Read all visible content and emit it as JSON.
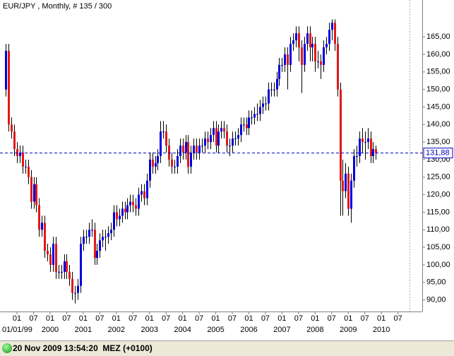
{
  "chart_data": {
    "type": "candlestick",
    "title": "EUR/JPY , Monthly, # 135 / 300",
    "x": [
      "1998-09",
      "1998-10",
      "1998-11",
      "1998-12",
      "1999-01",
      "1999-02",
      "1999-03",
      "1999-04",
      "1999-05",
      "1999-06",
      "1999-07",
      "1999-08",
      "1999-09",
      "1999-10",
      "1999-11",
      "1999-12",
      "2000-01",
      "2000-02",
      "2000-03",
      "2000-04",
      "2000-05",
      "2000-06",
      "2000-07",
      "2000-08",
      "2000-09",
      "2000-10",
      "2000-11",
      "2000-12",
      "2001-01",
      "2001-02",
      "2001-03",
      "2001-04",
      "2001-05",
      "2001-06",
      "2001-07",
      "2001-08",
      "2001-09",
      "2001-10",
      "2001-11",
      "2001-12",
      "2002-01",
      "2002-02",
      "2002-03",
      "2002-04",
      "2002-05",
      "2002-06",
      "2002-07",
      "2002-08",
      "2002-09",
      "2002-10",
      "2002-11",
      "2002-12",
      "2003-01",
      "2003-02",
      "2003-03",
      "2003-04",
      "2003-05",
      "2003-06",
      "2003-07",
      "2003-08",
      "2003-09",
      "2003-10",
      "2003-11",
      "2003-12",
      "2004-01",
      "2004-02",
      "2004-03",
      "2004-04",
      "2004-05",
      "2004-06",
      "2004-07",
      "2004-08",
      "2004-09",
      "2004-10",
      "2004-11",
      "2004-12",
      "2005-01",
      "2005-02",
      "2005-03",
      "2005-04",
      "2005-05",
      "2005-06",
      "2005-07",
      "2005-08",
      "2005-09",
      "2005-10",
      "2005-11",
      "2005-12",
      "2006-01",
      "2006-02",
      "2006-03",
      "2006-04",
      "2006-05",
      "2006-06",
      "2006-07",
      "2006-08",
      "2006-09",
      "2006-10",
      "2006-11",
      "2006-12",
      "2007-01",
      "2007-02",
      "2007-03",
      "2007-04",
      "2007-05",
      "2007-06",
      "2007-07",
      "2007-08",
      "2007-09",
      "2007-10",
      "2007-11",
      "2007-12",
      "2008-01",
      "2008-02",
      "2008-03",
      "2008-04",
      "2008-05",
      "2008-06",
      "2008-07",
      "2008-08",
      "2008-09",
      "2008-10",
      "2008-11",
      "2008-12",
      "2009-01",
      "2009-02",
      "2009-03",
      "2009-04",
      "2009-05",
      "2009-06",
      "2009-07",
      "2009-08",
      "2009-09",
      "2009-10",
      "2009-11"
    ],
    "open": [
      150,
      161,
      140,
      138,
      133,
      131,
      132,
      128,
      128,
      125,
      118,
      123,
      117,
      110,
      112,
      104,
      103,
      100,
      106,
      98,
      98,
      98,
      101,
      98,
      96,
      92,
      92,
      94,
      106,
      108,
      108,
      110,
      110,
      102,
      104,
      107,
      108,
      108,
      109,
      110,
      115,
      113,
      114,
      116,
      115,
      117,
      118,
      117,
      116,
      120,
      121,
      119,
      124,
      130,
      128,
      129,
      131,
      138,
      138,
      134,
      130,
      128,
      128,
      131,
      134,
      132,
      135,
      128,
      132,
      134,
      132,
      134,
      134,
      136,
      135,
      137,
      139,
      134,
      138,
      139,
      138,
      134,
      134,
      136,
      136,
      137,
      140,
      140,
      139,
      142,
      142,
      143,
      143,
      145,
      146,
      146,
      150,
      150,
      150,
      153,
      157,
      157,
      160,
      157,
      163,
      164,
      166,
      162,
      157,
      163,
      166,
      162,
      163,
      158,
      158,
      157,
      162,
      163,
      167,
      169,
      163,
      150,
      124,
      121,
      126,
      116,
      124,
      131,
      131,
      136,
      135,
      135,
      136,
      131,
      133
    ],
    "high": [
      163,
      163,
      142,
      140,
      135,
      134,
      134,
      130,
      130,
      127,
      125,
      125,
      119,
      114,
      114,
      106,
      105,
      108,
      108,
      100,
      100,
      103,
      103,
      100,
      98,
      94,
      96,
      108,
      110,
      110,
      112,
      113,
      112,
      106,
      109,
      110,
      110,
      111,
      112,
      117,
      117,
      116,
      118,
      118,
      119,
      120,
      120,
      119,
      122,
      123,
      123,
      126,
      132,
      132,
      131,
      133,
      141,
      141,
      140,
      136,
      132,
      130,
      133,
      136,
      136,
      137,
      137,
      134,
      136,
      136,
      136,
      136,
      138,
      138,
      139,
      141,
      141,
      140,
      141,
      141,
      140,
      136,
      138,
      138,
      139,
      142,
      142,
      142,
      144,
      144,
      145,
      146,
      147,
      148,
      148,
      152,
      152,
      152,
      155,
      159,
      159,
      162,
      162,
      165,
      166,
      168,
      168,
      164,
      165,
      168,
      168,
      165,
      165,
      161,
      160,
      164,
      165,
      169,
      170,
      170,
      165,
      152,
      130,
      129,
      128,
      126,
      133,
      134,
      138,
      139,
      138,
      139,
      138,
      135,
      134
    ],
    "low": [
      148,
      138,
      136,
      131,
      129,
      129,
      126,
      126,
      123,
      116,
      116,
      115,
      108,
      108,
      102,
      101,
      98,
      98,
      96,
      96,
      96,
      96,
      96,
      94,
      90,
      89,
      90,
      92,
      104,
      106,
      106,
      108,
      100,
      100,
      102,
      105,
      104,
      106,
      107,
      108,
      111,
      111,
      112,
      113,
      113,
      115,
      115,
      114,
      114,
      118,
      117,
      117,
      122,
      126,
      126,
      127,
      129,
      136,
      132,
      128,
      126,
      126,
      126,
      129,
      130,
      130,
      126,
      126,
      130,
      130,
      130,
      132,
      132,
      133,
      133,
      135,
      132,
      132,
      136,
      136,
      132,
      131,
      132,
      134,
      134,
      135,
      138,
      137,
      137,
      140,
      140,
      141,
      141,
      143,
      144,
      144,
      148,
      148,
      148,
      151,
      155,
      155,
      150,
      155,
      161,
      162,
      158,
      149,
      155,
      161,
      158,
      158,
      155,
      156,
      153,
      155,
      160,
      161,
      164,
      161,
      148,
      114,
      114,
      119,
      114,
      112,
      122,
      128,
      129,
      132,
      130,
      133,
      129,
      129,
      130
    ],
    "close": [
      161,
      140,
      138,
      133,
      131,
      132,
      128,
      128,
      125,
      118,
      123,
      117,
      110,
      112,
      104,
      103,
      100,
      106,
      98,
      98,
      98,
      101,
      98,
      96,
      92,
      92,
      94,
      106,
      108,
      108,
      110,
      110,
      102,
      104,
      107,
      108,
      108,
      109,
      110,
      115,
      113,
      114,
      116,
      115,
      117,
      118,
      117,
      116,
      120,
      121,
      119,
      124,
      130,
      128,
      129,
      131,
      138,
      138,
      134,
      130,
      128,
      128,
      131,
      134,
      132,
      135,
      128,
      132,
      134,
      132,
      134,
      134,
      136,
      135,
      137,
      139,
      134,
      138,
      139,
      138,
      134,
      134,
      136,
      136,
      137,
      140,
      140,
      139,
      142,
      142,
      143,
      143,
      145,
      146,
      146,
      150,
      150,
      150,
      153,
      157,
      157,
      160,
      157,
      163,
      164,
      166,
      162,
      157,
      163,
      166,
      162,
      163,
      158,
      158,
      157,
      162,
      163,
      167,
      169,
      163,
      150,
      124,
      121,
      126,
      116,
      124,
      131,
      131,
      136,
      135,
      135,
      136,
      131,
      133,
      131.88
    ],
    "up_color": "#0000e0",
    "down_color": "#e01818",
    "wick_color": "#000000",
    "ylim": [
      86.7,
      175.5
    ],
    "yticks": [
      {
        "value": 90,
        "label": "90,00"
      },
      {
        "value": 95,
        "label": "95,00"
      },
      {
        "value": 100,
        "label": "100,00"
      },
      {
        "value": 105,
        "label": "105,00"
      },
      {
        "value": 110,
        "label": "110,00"
      },
      {
        "value": 115,
        "label": "115,00"
      },
      {
        "value": 120,
        "label": "120,00"
      },
      {
        "value": 125,
        "label": "125,00"
      },
      {
        "value": 130,
        "label": "130,00"
      },
      {
        "value": 135,
        "label": "135,00"
      },
      {
        "value": 140,
        "label": "140,00"
      },
      {
        "value": 145,
        "label": "145,00"
      },
      {
        "value": 150,
        "label": "150,00"
      },
      {
        "value": 155,
        "label": "155,00"
      },
      {
        "value": 160,
        "label": "160,00"
      },
      {
        "value": 165,
        "label": "165,00"
      }
    ],
    "xticks": [
      {
        "value": "1999-01",
        "label": "01"
      },
      {
        "value": "1999-07",
        "label": "07"
      },
      {
        "value": "2000-01",
        "label": "01"
      },
      {
        "value": "2000-07",
        "label": "07"
      },
      {
        "value": "2001-01",
        "label": "01"
      },
      {
        "value": "2001-07",
        "label": "07"
      },
      {
        "value": "2002-01",
        "label": "01"
      },
      {
        "value": "2002-07",
        "label": "07"
      },
      {
        "value": "2003-01",
        "label": "01"
      },
      {
        "value": "2003-07",
        "label": "07"
      },
      {
        "value": "2004-01",
        "label": "01"
      },
      {
        "value": "2004-07",
        "label": "07"
      },
      {
        "value": "2005-01",
        "label": "01"
      },
      {
        "value": "2005-07",
        "label": "07"
      },
      {
        "value": "2006-01",
        "label": "01"
      },
      {
        "value": "2006-07",
        "label": "07"
      },
      {
        "value": "2007-01",
        "label": "01"
      },
      {
        "value": "2007-07",
        "label": "07"
      },
      {
        "value": "2008-01",
        "label": "01"
      },
      {
        "value": "2008-07",
        "label": "07"
      },
      {
        "value": "2009-01",
        "label": "01"
      },
      {
        "value": "2009-07",
        "label": "07"
      },
      {
        "value": "2010-01",
        "label": "01"
      },
      {
        "value": "2010-07",
        "label": "07"
      }
    ],
    "year_labels": [
      {
        "value": "1999-01",
        "label": "01/01/99"
      },
      {
        "value": "2000-01",
        "label": "2000"
      },
      {
        "value": "2001-01",
        "label": "2001"
      },
      {
        "value": "2002-01",
        "label": "2002"
      },
      {
        "value": "2003-01",
        "label": "2003"
      },
      {
        "value": "2004-01",
        "label": "2004"
      },
      {
        "value": "2005-01",
        "label": "2005"
      },
      {
        "value": "2006-01",
        "label": "2006"
      },
      {
        "value": "2007-01",
        "label": "2007"
      },
      {
        "value": "2008-01",
        "label": "2008"
      },
      {
        "value": "2009-01",
        "label": "2009"
      },
      {
        "value": "2010-01",
        "label": "2010"
      }
    ],
    "current_price": {
      "value": 131.88,
      "label": "131,88",
      "color": "#0000c0"
    }
  },
  "status_bar": {
    "text": "20 Nov 2009 13:54:20  MEZ (+0100)"
  }
}
